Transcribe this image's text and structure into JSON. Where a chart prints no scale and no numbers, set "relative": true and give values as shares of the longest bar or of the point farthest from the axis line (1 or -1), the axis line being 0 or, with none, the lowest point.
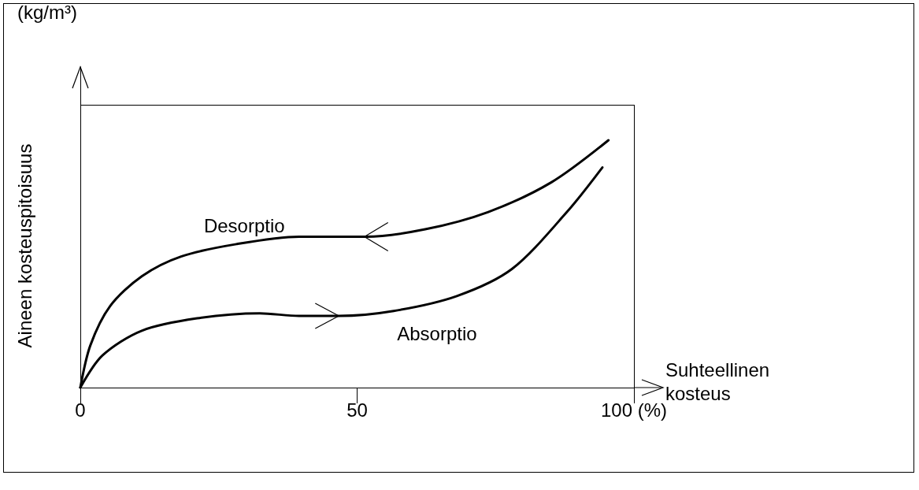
{
  "chart_data": {
    "type": "line",
    "relative": true,
    "xlabel": "Suhteellinen kosteus",
    "ylabel": "Aineen kosteuspitoisuus",
    "annotations": [
      "(kg/m³)"
    ],
    "xlim": [
      0,
      100
    ],
    "xticks": [
      0,
      50,
      {
        "value": 100,
        "label": "100 (%)"
      }
    ],
    "grid": false,
    "legend": false,
    "marker": "none",
    "line_style": "solid",
    "series": [
      {
        "name": "Desorptio",
        "color": "#000000",
        "x": [
          0,
          1.8,
          5.4,
          11.1,
          18.2,
          28.2,
          39.5,
          51.6,
          62.3,
          73.7,
          85.1,
          95.4
        ],
        "values": [
          0,
          0.17,
          0.33,
          0.45,
          0.53,
          0.58,
          0.61,
          0.61,
          0.64,
          0.71,
          0.83,
          1
        ]
      },
      {
        "name": "Absorptio",
        "color": "#000000",
        "x": [
          0,
          4,
          11.1,
          21.1,
          32.4,
          39.5,
          46.7,
          56.6,
          68,
          78,
          87.9,
          94.3
        ],
        "values": [
          0,
          0.13,
          0.23,
          0.28,
          0.3,
          0.29,
          0.29,
          0.31,
          0.37,
          0.48,
          0.71,
          0.89
        ]
      }
    ]
  }
}
